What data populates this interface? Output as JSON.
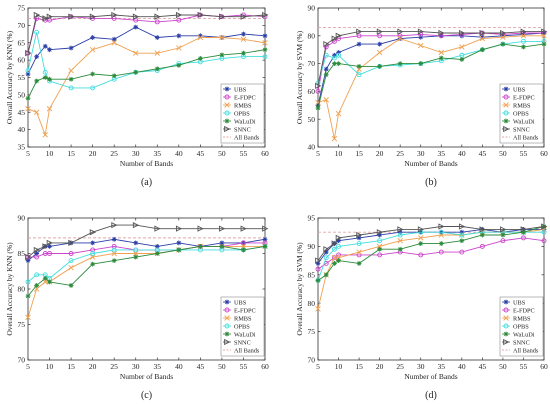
{
  "chart_data": [
    {
      "id": "a",
      "type": "line",
      "caption": "(a)",
      "xlabel": "Number of Bands",
      "ylabel": "Overall Accuracy by KNN (%)",
      "xlim": [
        5,
        60
      ],
      "ylim": [
        35,
        75
      ],
      "xticks": [
        5,
        10,
        15,
        20,
        25,
        30,
        35,
        40,
        45,
        50,
        55,
        60
      ],
      "yticks": [
        35,
        40,
        45,
        50,
        55,
        60,
        65,
        70,
        75
      ],
      "grid": false,
      "legend_position": "bottom-right",
      "x": [
        5,
        7,
        9,
        10,
        15,
        20,
        25,
        30,
        35,
        40,
        45,
        50,
        55,
        60
      ],
      "all_bands": 72,
      "series": [
        {
          "name": "UBS",
          "values": [
            56,
            61,
            64,
            63,
            63.5,
            66.5,
            66,
            69.5,
            66.5,
            67,
            67,
            66.5,
            67.5,
            67
          ]
        },
        {
          "name": "E-FDPC",
          "values": [
            62,
            72,
            71.5,
            71.5,
            72.5,
            72,
            72,
            71.5,
            71,
            71.5,
            73,
            72.5,
            73,
            72.5
          ]
        },
        {
          "name": "RMBS",
          "values": [
            46,
            45,
            38.5,
            46,
            57,
            63,
            65,
            62,
            62,
            63.5,
            66.5,
            66.5,
            66,
            65
          ]
        },
        {
          "name": "OPBS",
          "values": [
            57,
            68,
            56.5,
            54,
            52,
            52,
            54.5,
            56.5,
            57,
            59,
            59.5,
            60.5,
            61,
            61
          ]
        },
        {
          "name": "WaLuDi",
          "values": [
            49,
            54,
            55,
            54.5,
            54.5,
            56,
            55.5,
            56.5,
            57.5,
            58.5,
            60.5,
            61.5,
            62,
            63
          ]
        },
        {
          "name": "SNNC",
          "values": [
            62,
            73,
            72,
            72.5,
            72.5,
            72.5,
            73,
            72.5,
            72.5,
            73,
            73,
            72.5,
            72.5,
            73
          ]
        }
      ]
    },
    {
      "id": "b",
      "type": "line",
      "caption": "(b)",
      "xlabel": "Number of Bands",
      "ylabel": "Overall Accuracy by SVM (%)",
      "xlim": [
        5,
        60
      ],
      "ylim": [
        40,
        90
      ],
      "xticks": [
        5,
        10,
        15,
        20,
        25,
        30,
        35,
        40,
        45,
        50,
        55,
        60
      ],
      "yticks": [
        40,
        50,
        60,
        70,
        80,
        90
      ],
      "grid": false,
      "legend_position": "bottom-right",
      "x": [
        5,
        7,
        9,
        10,
        15,
        20,
        25,
        30,
        35,
        40,
        45,
        50,
        55,
        60
      ],
      "all_bands": 83,
      "series": [
        {
          "name": "UBS",
          "values": [
            55,
            68,
            73,
            74,
            77,
            77,
            79,
            79.5,
            80,
            80,
            79.5,
            80,
            80.5,
            81
          ]
        },
        {
          "name": "E-FDPC",
          "values": [
            60,
            76,
            78,
            79,
            80,
            80,
            80,
            80.5,
            80,
            80.5,
            81,
            80.5,
            81,
            81
          ]
        },
        {
          "name": "RMBS",
          "values": [
            56,
            57,
            43,
            52,
            68,
            74,
            79,
            76.5,
            74,
            76,
            79,
            79.5,
            80,
            80
          ]
        },
        {
          "name": "OPBS",
          "values": [
            63,
            73,
            72,
            73,
            66,
            69,
            69.5,
            70,
            71,
            73,
            75,
            77,
            78,
            78
          ]
        },
        {
          "name": "WaLuDi",
          "values": [
            54,
            66,
            70,
            70,
            69,
            69,
            70,
            70,
            72,
            71.5,
            75,
            77,
            76,
            77
          ]
        },
        {
          "name": "SNNC",
          "values": [
            62,
            77,
            79,
            80,
            81.5,
            81.5,
            81.5,
            81.5,
            81,
            81,
            81,
            81,
            81.5,
            81.5
          ]
        }
      ]
    },
    {
      "id": "c",
      "type": "line",
      "caption": "(c)",
      "xlabel": "Number of Bands",
      "ylabel": "Overall Accuracy by KNN (%)",
      "xlim": [
        5,
        60
      ],
      "ylim": [
        70,
        90
      ],
      "xticks": [
        5,
        10,
        15,
        20,
        25,
        30,
        35,
        40,
        45,
        50,
        55,
        60
      ],
      "yticks": [
        70,
        75,
        80,
        85,
        90
      ],
      "grid": false,
      "legend_position": "bottom-right",
      "x": [
        5,
        7,
        9,
        10,
        15,
        20,
        25,
        30,
        35,
        40,
        45,
        50,
        55,
        60
      ],
      "all_bands": 87.2,
      "series": [
        {
          "name": "UBS",
          "values": [
            84,
            85,
            86,
            86,
            86.5,
            86.5,
            87,
            86.5,
            86,
            86.5,
            86,
            86.5,
            86.5,
            87
          ]
        },
        {
          "name": "E-FDPC",
          "values": [
            84.5,
            84.5,
            85,
            85,
            85,
            85.5,
            86,
            85.5,
            85.5,
            85.5,
            86,
            86,
            86.5,
            86.5
          ]
        },
        {
          "name": "RMBS",
          "values": [
            76,
            80,
            81,
            81,
            83,
            84.5,
            85,
            85,
            85,
            85.5,
            86,
            86,
            86,
            86
          ]
        },
        {
          "name": "OPBS",
          "values": [
            81,
            82,
            82,
            81.5,
            84,
            85,
            85.5,
            85.5,
            85.5,
            85.5,
            85.5,
            85.5,
            85.5,
            86
          ]
        },
        {
          "name": "WaLuDi",
          "values": [
            79,
            80.5,
            81.5,
            81,
            80.5,
            83.5,
            84,
            84.5,
            85,
            85.5,
            86,
            86,
            85.5,
            86
          ]
        },
        {
          "name": "SNNC",
          "values": [
            84.5,
            85.5,
            86,
            86.5,
            86.5,
            88,
            89,
            89,
            88.5,
            88.5,
            88.5,
            88.5,
            88.5,
            88.5
          ]
        }
      ]
    },
    {
      "id": "d",
      "type": "line",
      "caption": "(d)",
      "xlabel": "Number of Bands",
      "ylabel": "Overall Accuracy by SVM (%)",
      "xlim": [
        5,
        60
      ],
      "ylim": [
        70,
        95
      ],
      "xticks": [
        5,
        10,
        15,
        20,
        25,
        30,
        35,
        40,
        45,
        50,
        55,
        60
      ],
      "yticks": [
        70,
        75,
        80,
        85,
        90,
        95
      ],
      "grid": false,
      "legend_position": "bottom-right",
      "x": [
        5,
        7,
        9,
        10,
        15,
        20,
        25,
        30,
        35,
        40,
        45,
        50,
        55,
        60
      ],
      "all_bands": 92.5,
      "series": [
        {
          "name": "UBS",
          "values": [
            87,
            89,
            90.5,
            91,
            91.5,
            92,
            92.5,
            92.5,
            92.5,
            92.5,
            93,
            92.5,
            93,
            93
          ]
        },
        {
          "name": "E-FDPC",
          "values": [
            86,
            87,
            88,
            88.5,
            88.5,
            88.5,
            89,
            88.5,
            89,
            89,
            90,
            91,
            91.5,
            91
          ]
        },
        {
          "name": "RMBS",
          "values": [
            79,
            85,
            88,
            88,
            89,
            90,
            91,
            91.5,
            92,
            92,
            92.5,
            92.5,
            92.5,
            93
          ]
        },
        {
          "name": "OPBS",
          "values": [
            84,
            88,
            89.5,
            90,
            90.5,
            91,
            92,
            92.5,
            92.5,
            92,
            92.5,
            92.5,
            92.5,
            92.5
          ]
        },
        {
          "name": "WaLuDi",
          "values": [
            84,
            85,
            87,
            87.5,
            87,
            89.5,
            89.5,
            90.5,
            90.5,
            91,
            92,
            92,
            92.5,
            93.5
          ]
        },
        {
          "name": "SNNC",
          "values": [
            87.5,
            89.5,
            90.5,
            91.5,
            92,
            92.5,
            93,
            93,
            93.5,
            93.5,
            93,
            93,
            93,
            93.5
          ]
        }
      ]
    }
  ],
  "legend": {
    "entries": [
      "UBS",
      "E-FDPC",
      "RMBS",
      "OPBS",
      "WaLuDi",
      "SNNC",
      "All Bands"
    ],
    "colors": {
      "UBS": "#2b3ea8",
      "E-FDPC": "#cc44cc",
      "RMBS": "#f0a050",
      "OPBS": "#44dddd",
      "WaLuDi": "#2a8a3a",
      "SNNC": "#555555",
      "All Bands": "#e0a8a8"
    },
    "markers": {
      "UBS": "star",
      "E-FDPC": "circle",
      "RMBS": "x",
      "OPBS": "circle",
      "WaLuDi": "star",
      "SNNC": "triangle",
      "All Bands": "none"
    }
  }
}
